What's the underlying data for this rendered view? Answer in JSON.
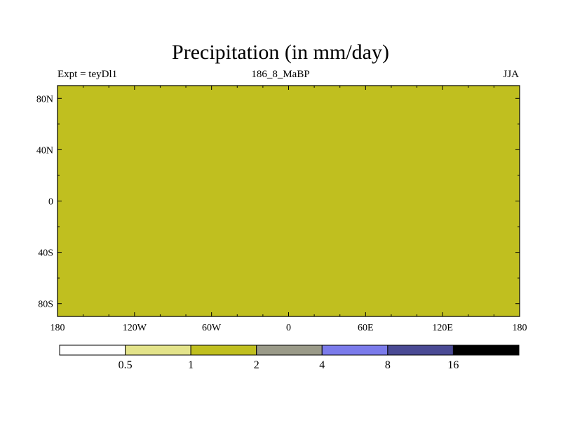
{
  "title": "Precipitation (in mm/day)",
  "subtitle_left": "Expt = teyDl1",
  "subtitle_center": "186_8_MaBP",
  "subtitle_right": "JJA",
  "lat_ticks": [
    {
      "label": "80N",
      "lat": 80
    },
    {
      "label": "40N",
      "lat": 40
    },
    {
      "label": "0",
      "lat": 0
    },
    {
      "label": "40S",
      "lat": -40
    },
    {
      "label": "80S",
      "lat": -80
    }
  ],
  "lon_ticks": [
    {
      "label": "180",
      "lon": -180
    },
    {
      "label": "120W",
      "lon": -120
    },
    {
      "label": "60W",
      "lon": -60
    },
    {
      "label": "0",
      "lon": 0
    },
    {
      "label": "60E",
      "lon": 60
    },
    {
      "label": "120E",
      "lon": 120
    },
    {
      "label": "180",
      "lon": 180
    }
  ],
  "colorbar": {
    "colors": [
      "#ffffff",
      "#e3e38a",
      "#c0bf1f",
      "#9a9a88",
      "#7b7beb",
      "#4a4a94",
      "#000000"
    ],
    "labels": [
      "0.5",
      "1",
      "2",
      "4",
      "8",
      "16"
    ]
  }
}
